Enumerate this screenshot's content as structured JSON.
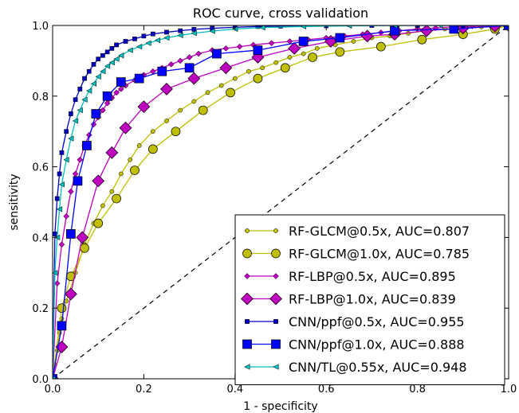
{
  "chart_data": {
    "type": "line",
    "title": "ROC curve, cross validation",
    "xlabel": "1 - specificity",
    "ylabel": "sensitivity",
    "xlim": [
      0.0,
      1.0
    ],
    "ylim": [
      0.0,
      1.0
    ],
    "xticks": [
      "0.0",
      "0.2",
      "0.4",
      "0.6",
      "0.8",
      "1.0"
    ],
    "yticks": [
      "0.0",
      "0.2",
      "0.4",
      "0.6",
      "0.8",
      "1.0"
    ],
    "grid": false,
    "legend_position": "lower-right",
    "diagonal": {
      "style": "dashed",
      "color": "#000000"
    },
    "series": [
      {
        "name": "RF-GLCM@0.5x, AUC=0.807",
        "color": "#bfbf00",
        "marker": "circle",
        "marker_size": "small",
        "x": [
          0.0,
          0.005,
          0.01,
          0.015,
          0.02,
          0.03,
          0.05,
          0.07,
          0.09,
          0.11,
          0.13,
          0.15,
          0.17,
          0.19,
          0.22,
          0.25,
          0.28,
          0.31,
          0.34,
          0.37,
          0.4,
          0.43,
          0.46,
          0.49,
          0.52,
          0.55,
          0.58,
          0.62,
          0.66,
          0.7,
          0.74,
          0.78,
          0.82,
          0.86,
          0.9,
          0.94,
          0.97,
          1.0
        ],
        "y": [
          0.0,
          0.04,
          0.08,
          0.13,
          0.17,
          0.22,
          0.3,
          0.38,
          0.44,
          0.49,
          0.53,
          0.58,
          0.62,
          0.66,
          0.7,
          0.73,
          0.76,
          0.785,
          0.81,
          0.83,
          0.85,
          0.87,
          0.88,
          0.895,
          0.91,
          0.92,
          0.935,
          0.945,
          0.955,
          0.965,
          0.97,
          0.978,
          0.985,
          0.99,
          0.993,
          0.996,
          0.998,
          1.0
        ]
      },
      {
        "name": "RF-GLCM@1.0x, AUC=0.785",
        "color": "#bfbf00",
        "marker": "circle",
        "marker_size": "large",
        "x": [
          0.0,
          0.02,
          0.04,
          0.07,
          0.1,
          0.14,
          0.18,
          0.22,
          0.27,
          0.33,
          0.39,
          0.45,
          0.51,
          0.57,
          0.63,
          0.72,
          0.81,
          0.9,
          0.97,
          1.0
        ],
        "y": [
          0.0,
          0.2,
          0.29,
          0.37,
          0.44,
          0.51,
          0.59,
          0.65,
          0.7,
          0.76,
          0.81,
          0.85,
          0.88,
          0.91,
          0.925,
          0.94,
          0.96,
          0.975,
          0.99,
          1.0
        ]
      },
      {
        "name": "RF-LBP@0.5x, AUC=0.895",
        "color": "#bf00bf",
        "marker": "diamond",
        "marker_size": "small",
        "x": [
          0.0,
          0.01,
          0.02,
          0.03,
          0.04,
          0.05,
          0.06,
          0.07,
          0.08,
          0.09,
          0.1,
          0.11,
          0.12,
          0.13,
          0.14,
          0.15,
          0.16,
          0.18,
          0.2,
          0.22,
          0.24,
          0.26,
          0.28,
          0.3,
          0.32,
          0.35,
          0.38,
          0.41,
          0.44,
          0.48,
          0.52,
          0.56,
          0.6,
          0.64,
          0.68,
          0.72,
          0.76,
          0.8,
          0.84,
          0.88,
          0.92,
          0.96,
          1.0
        ],
        "y": [
          0.0,
          0.27,
          0.38,
          0.46,
          0.53,
          0.58,
          0.62,
          0.66,
          0.69,
          0.72,
          0.74,
          0.76,
          0.78,
          0.795,
          0.81,
          0.82,
          0.83,
          0.845,
          0.86,
          0.87,
          0.88,
          0.89,
          0.9,
          0.91,
          0.92,
          0.93,
          0.935,
          0.94,
          0.945,
          0.95,
          0.955,
          0.96,
          0.965,
          0.97,
          0.975,
          0.98,
          0.985,
          0.99,
          0.993,
          0.996,
          0.998,
          0.999,
          1.0
        ]
      },
      {
        "name": "RF-LBP@1.0x, AUC=0.839",
        "color": "#bf00bf",
        "marker": "diamond",
        "marker_size": "large",
        "x": [
          0.0,
          0.02,
          0.04,
          0.065,
          0.1,
          0.13,
          0.16,
          0.2,
          0.25,
          0.31,
          0.38,
          0.45,
          0.53,
          0.61,
          0.69,
          0.75,
          0.82,
          0.9,
          0.97,
          1.0
        ],
        "y": [
          0.0,
          0.09,
          0.24,
          0.4,
          0.56,
          0.64,
          0.71,
          0.77,
          0.82,
          0.85,
          0.88,
          0.91,
          0.935,
          0.955,
          0.97,
          0.975,
          0.985,
          0.993,
          0.998,
          1.0
        ]
      },
      {
        "name": "CNN/ppf@0.5x, AUC=0.955",
        "color": "#0000bf",
        "marker": "square",
        "marker_size": "small",
        "x": [
          0.0,
          0.005,
          0.01,
          0.015,
          0.02,
          0.03,
          0.04,
          0.05,
          0.06,
          0.07,
          0.08,
          0.09,
          0.1,
          0.11,
          0.12,
          0.13,
          0.14,
          0.16,
          0.18,
          0.2,
          0.22,
          0.25,
          0.28,
          0.31,
          0.35,
          0.4,
          0.45,
          0.5,
          0.6,
          0.7,
          0.8,
          0.9,
          1.0
        ],
        "y": [
          0.0,
          0.41,
          0.51,
          0.58,
          0.64,
          0.7,
          0.75,
          0.79,
          0.82,
          0.85,
          0.87,
          0.89,
          0.905,
          0.915,
          0.925,
          0.935,
          0.945,
          0.955,
          0.962,
          0.97,
          0.976,
          0.981,
          0.985,
          0.989,
          0.992,
          0.995,
          0.997,
          0.998,
          0.999,
          1.0,
          1.0,
          1.0,
          1.0
        ]
      },
      {
        "name": "CNN/ppf@1.0x, AUC=0.888",
        "color": "#0000ff",
        "marker": "square",
        "marker_size": "large",
        "x": [
          0.0,
          0.02,
          0.04,
          0.055,
          0.075,
          0.095,
          0.12,
          0.15,
          0.19,
          0.24,
          0.3,
          0.36,
          0.45,
          0.55,
          0.63,
          0.75,
          0.88,
          1.0
        ],
        "y": [
          0.0,
          0.15,
          0.41,
          0.56,
          0.66,
          0.75,
          0.8,
          0.84,
          0.85,
          0.87,
          0.88,
          0.92,
          0.93,
          0.955,
          0.965,
          0.985,
          0.99,
          1.0
        ]
      },
      {
        "name": "CNN/TL@0.55x, AUC=0.948",
        "color": "#00bfbf",
        "marker": "triangle-left",
        "marker_size": "small",
        "x": [
          0.0,
          0.005,
          0.01,
          0.015,
          0.02,
          0.03,
          0.04,
          0.05,
          0.06,
          0.07,
          0.08,
          0.09,
          0.1,
          0.11,
          0.12,
          0.13,
          0.14,
          0.15,
          0.17,
          0.19,
          0.21,
          0.23,
          0.25,
          0.28,
          0.31,
          0.35,
          0.4,
          0.46,
          0.55,
          0.65,
          0.75,
          0.85,
          1.0
        ],
        "y": [
          0.0,
          0.3,
          0.4,
          0.48,
          0.55,
          0.62,
          0.68,
          0.73,
          0.76,
          0.79,
          0.815,
          0.835,
          0.855,
          0.87,
          0.885,
          0.895,
          0.905,
          0.915,
          0.93,
          0.94,
          0.95,
          0.958,
          0.965,
          0.972,
          0.978,
          0.984,
          0.99,
          0.994,
          0.997,
          0.999,
          1.0,
          1.0,
          1.0
        ]
      }
    ]
  }
}
